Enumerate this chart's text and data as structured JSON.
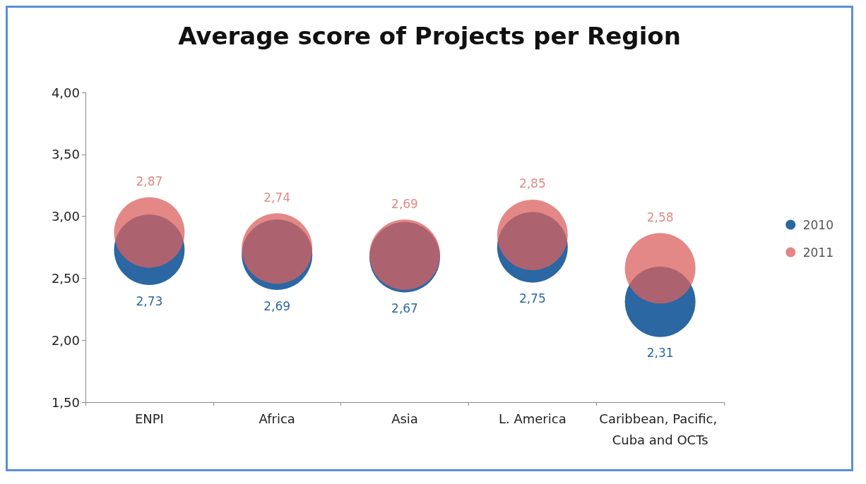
{
  "chart_data": {
    "type": "bubble",
    "title": "Average score of Projects per Region",
    "categories": [
      "ENPI",
      "Africa",
      "Asia",
      "L. America",
      "Caribbean, Pacific, Cuba and OCTs"
    ],
    "series": [
      {
        "name": "2010",
        "color": "#1f5f9e",
        "values": [
          2.73,
          2.69,
          2.67,
          2.75,
          2.31
        ],
        "sizes": [
          1,
          1,
          1,
          1,
          1
        ],
        "value_labels": [
          "2,73",
          "2,69",
          "2,67",
          "2,75",
          "2,31"
        ]
      },
      {
        "name": "2011",
        "color": "#d9605e",
        "values": [
          2.87,
          2.74,
          2.69,
          2.85,
          2.58
        ],
        "sizes": [
          1,
          1,
          1,
          1,
          1
        ],
        "value_labels": [
          "2,87",
          "2,74",
          "2,69",
          "2,85",
          "2,58"
        ]
      }
    ],
    "ylim": [
      1.5,
      4
    ],
    "yticks": [
      {
        "value": 1.5,
        "label": "1,50"
      },
      {
        "value": 2,
        "label": "2,00"
      },
      {
        "value": 2.5,
        "label": "2,50"
      },
      {
        "value": 3,
        "label": "3,00"
      },
      {
        "value": 3.5,
        "label": "3,50"
      },
      {
        "value": 4,
        "label": "4,00"
      }
    ],
    "grid": false,
    "legend": "right"
  }
}
